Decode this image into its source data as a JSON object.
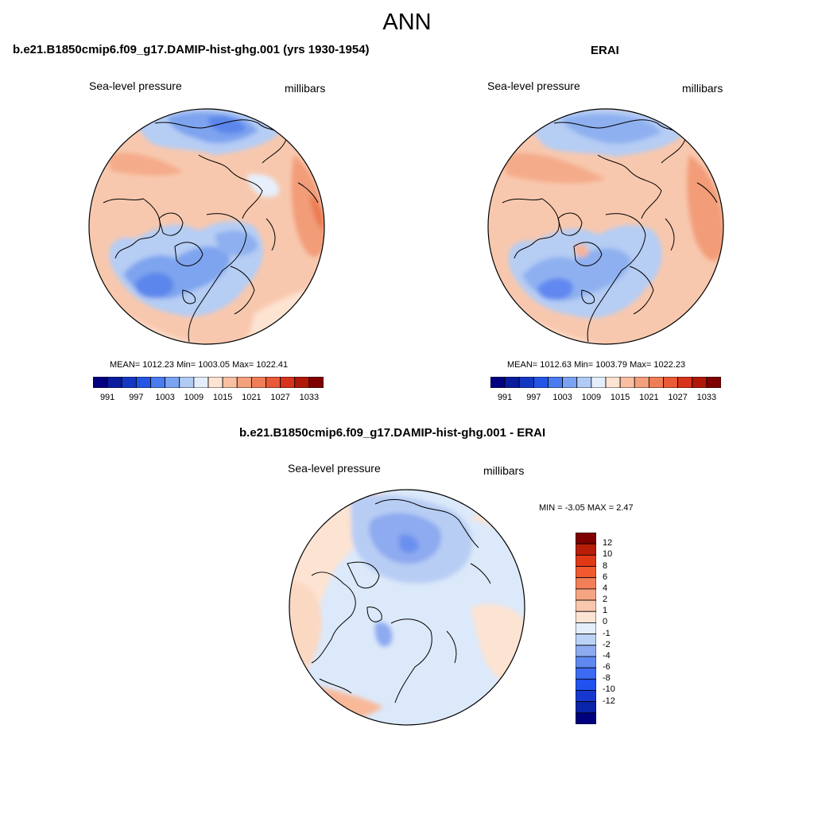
{
  "figure": {
    "season_title": "ANN"
  },
  "panels": [
    {
      "title": "b.e21.B1850cmip6.f09_g17.DAMIP-hist-ghg.001 (yrs 1930-1954)",
      "left_label": "Sea-level pressure",
      "right_label": "millibars",
      "stats": "MEAN= 1012.23  Min= 1003.05  Max= 1022.41"
    },
    {
      "title": "ERAI",
      "left_label": "Sea-level pressure",
      "right_label": "millibars",
      "stats": "MEAN= 1012.63  Min= 1003.79  Max= 1022.23"
    },
    {
      "title": "b.e21.B1850cmip6.f09_g17.DAMIP-hist-ghg.001 - ERAI",
      "left_label": "Sea-level pressure",
      "right_label": "millibars",
      "stats": "MIN =  -3.05 MAX =   2.47"
    }
  ],
  "colorbar_main": {
    "colors": [
      "#000080",
      "#0a1d9c",
      "#1538c2",
      "#2456e6",
      "#4a7cf0",
      "#7ba3f2",
      "#b2cbf5",
      "#e4eefa",
      "#fde3d2",
      "#f8bfa2",
      "#f4a07c",
      "#ef7e58",
      "#e95a36",
      "#d8331a",
      "#b01808",
      "#7f0000"
    ],
    "tick_labels": [
      "991",
      "997",
      "1003",
      "1009",
      "1015",
      "1021",
      "1027",
      "1033"
    ]
  },
  "colorbar_diff": {
    "colors": [
      "#00007f",
      "#0a24a8",
      "#1638d0",
      "#2052f0",
      "#3c6af2",
      "#6088f0",
      "#8eaaf0",
      "#bcd2f6",
      "#e4eefa",
      "#fce4d4",
      "#f9c7ad",
      "#f6a583",
      "#f37f58",
      "#f15a2e",
      "#e13816",
      "#b81d08",
      "#7f0000"
    ],
    "tick_labels": [
      "12",
      "10",
      "8",
      "6",
      "4",
      "2",
      "1",
      "0",
      "-1",
      "-2",
      "-4",
      "-6",
      "-8",
      "-10",
      "-12"
    ]
  }
}
